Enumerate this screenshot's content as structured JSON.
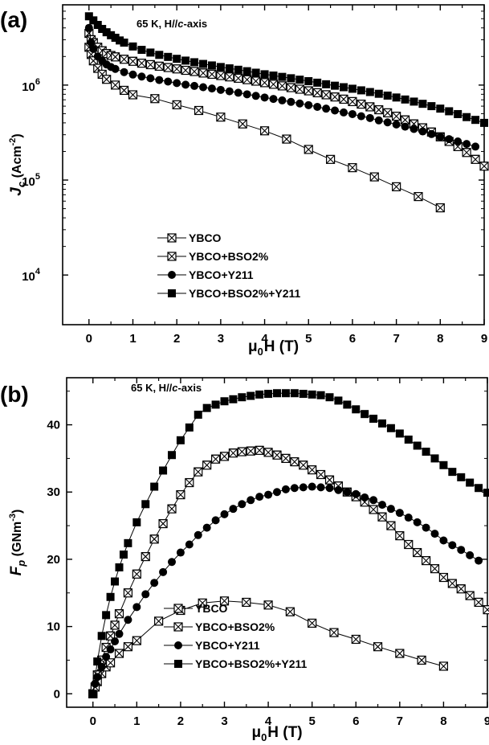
{
  "chart_data": [
    {
      "panel": "(a)",
      "type": "scatter",
      "annotation": "65 K, H//c-axis",
      "annotation_parts": {
        "pre": "65 K, H//",
        "italic": "c",
        "post": "-axis"
      },
      "ylabel_parts": {
        "var": "J",
        "sub": "c",
        "unit": "(Acm",
        "sup": "-2",
        "close": ")"
      },
      "xlabel_parts": {
        "mu": "μ",
        "sub": "0",
        "rest": "H (T)"
      },
      "xlim": [
        -0.6,
        9
      ],
      "ylim": [
        3000,
        7000000
      ],
      "yscale": "log",
      "x_ticks": [
        "0",
        "1",
        "2",
        "3",
        "4",
        "5",
        "6",
        "7",
        "8",
        "9"
      ],
      "y_ticks": [
        {
          "value": 10000,
          "base": "10",
          "exp": "4"
        },
        {
          "value": 100000,
          "base": "10",
          "exp": "5"
        },
        {
          "value": 1000000,
          "base": "10",
          "exp": "6"
        }
      ],
      "legend": [
        "YBCO",
        "YBCO+BSO2%",
        "YBCO+Y211",
        "YBCO+BSO2%+Y211"
      ],
      "series": [
        {
          "name": "YBCO",
          "marker": "crossbox",
          "x": [
            0.0,
            0.05,
            0.1,
            0.2,
            0.3,
            0.4,
            0.6,
            0.8,
            1.0,
            1.5,
            2.0,
            2.5,
            3.0,
            3.5,
            4.0,
            4.5,
            5.0,
            5.5,
            6.0,
            6.5,
            7.0,
            7.5,
            8.0
          ],
          "y": [
            2500000,
            2100000,
            1800000,
            1500000,
            1300000,
            1150000,
            1000000,
            880000,
            790000,
            720000,
            620000,
            540000,
            460000,
            390000,
            330000,
            270000,
            210000,
            165000,
            135000,
            108000,
            85000,
            67000,
            51000
          ]
        },
        {
          "name": "YBCO+BSO2%",
          "marker": "hourglassbox",
          "x": [
            0.0,
            0.05,
            0.1,
            0.2,
            0.3,
            0.4,
            0.5,
            0.6,
            0.8,
            1.0,
            1.2,
            1.4,
            1.6,
            1.8,
            2.0,
            2.2,
            2.4,
            2.6,
            2.8,
            3.0,
            3.2,
            3.4,
            3.6,
            3.8,
            4.0,
            4.2,
            4.4,
            4.6,
            4.8,
            5.0,
            5.2,
            5.4,
            5.6,
            5.8,
            6.0,
            6.2,
            6.4,
            6.6,
            6.8,
            7.0,
            7.2,
            7.4,
            7.6,
            7.8,
            8.0,
            8.2,
            8.4,
            8.6,
            8.8,
            9.0
          ],
          "y": [
            3500000,
            3000000,
            2800000,
            2500000,
            2300000,
            2150000,
            2050000,
            1980000,
            1870000,
            1780000,
            1700000,
            1640000,
            1580000,
            1530000,
            1480000,
            1430000,
            1390000,
            1340000,
            1300000,
            1260000,
            1220000,
            1180000,
            1140000,
            1100000,
            1060000,
            1020000,
            980000,
            940000,
            905000,
            870000,
            830000,
            790000,
            750000,
            710000,
            670000,
            630000,
            590000,
            550000,
            510000,
            470000,
            430000,
            390000,
            355000,
            320000,
            285000,
            255000,
            225000,
            195000,
            165000,
            140000
          ]
        },
        {
          "name": "YBCO+Y211",
          "marker": "circle",
          "x": [
            0.0,
            0.05,
            0.1,
            0.2,
            0.3,
            0.4,
            0.5,
            0.6,
            0.8,
            1.0,
            1.2,
            1.4,
            1.6,
            1.8,
            2.0,
            2.2,
            2.4,
            2.6,
            2.8,
            3.0,
            3.2,
            3.4,
            3.6,
            3.8,
            4.0,
            4.2,
            4.4,
            4.6,
            4.8,
            5.0,
            5.2,
            5.4,
            5.6,
            5.8,
            6.0,
            6.2,
            6.4,
            6.6,
            6.8,
            7.0,
            7.2,
            7.4,
            7.6,
            7.8,
            8.0,
            8.2,
            8.4,
            8.6,
            8.8
          ],
          "y": [
            4000000,
            2800000,
            2400000,
            2000000,
            1800000,
            1650000,
            1550000,
            1480000,
            1370000,
            1290000,
            1230000,
            1180000,
            1130000,
            1090000,
            1050000,
            1010000,
            980000,
            950000,
            920000,
            890000,
            860000,
            830000,
            800000,
            770000,
            740000,
            715000,
            690000,
            665000,
            640000,
            615000,
            590000,
            565000,
            540000,
            515000,
            495000,
            470000,
            450000,
            425000,
            405000,
            385000,
            365000,
            345000,
            325000,
            305000,
            285000,
            270000,
            255000,
            240000,
            225000
          ]
        },
        {
          "name": "YBCO+BSO2%+Y211",
          "marker": "square",
          "x": [
            0.0,
            0.1,
            0.2,
            0.3,
            0.4,
            0.5,
            0.6,
            0.7,
            0.8,
            1.0,
            1.2,
            1.4,
            1.6,
            1.8,
            2.0,
            2.2,
            2.4,
            2.6,
            2.8,
            3.0,
            3.2,
            3.4,
            3.6,
            3.8,
            4.0,
            4.2,
            4.4,
            4.6,
            4.8,
            5.0,
            5.2,
            5.4,
            5.6,
            5.8,
            6.0,
            6.2,
            6.4,
            6.6,
            6.8,
            7.0,
            7.2,
            7.4,
            7.6,
            7.8,
            8.0,
            8.2,
            8.4,
            8.6,
            8.8,
            9.0
          ],
          "y": [
            5300000,
            4800000,
            4300000,
            3900000,
            3600000,
            3350000,
            3150000,
            2950000,
            2800000,
            2550000,
            2350000,
            2200000,
            2080000,
            1980000,
            1890000,
            1810000,
            1740000,
            1670000,
            1610000,
            1550000,
            1500000,
            1450000,
            1400000,
            1350000,
            1300000,
            1260000,
            1220000,
            1180000,
            1140000,
            1100000,
            1060000,
            1020000,
            985000,
            950000,
            915000,
            880000,
            845000,
            810000,
            775000,
            740000,
            705000,
            670000,
            635000,
            600000,
            565000,
            530000,
            495000,
            460000,
            430000,
            400000
          ]
        }
      ]
    },
    {
      "panel": "(b)",
      "type": "scatter",
      "annotation": "65 K, H//c-axis",
      "annotation_parts": {
        "pre": "65 K, H//",
        "italic": "c",
        "post": "-axis"
      },
      "ylabel_parts": {
        "var": "F",
        "sub": "p",
        "unit": "(GNm",
        "sup": "-3",
        "close": ")"
      },
      "xlabel_parts": {
        "mu": "μ",
        "sub": "0",
        "rest": "H (T)"
      },
      "xlim": [
        -0.6,
        9
      ],
      "ylim": [
        -2,
        47
      ],
      "yscale": "linear",
      "x_ticks": [
        "0",
        "1",
        "2",
        "3",
        "4",
        "5",
        "6",
        "7",
        "8",
        "9"
      ],
      "y_ticks": [
        {
          "value": 0,
          "label": "0"
        },
        {
          "value": 10,
          "label": "10"
        },
        {
          "value": 20,
          "label": "20"
        },
        {
          "value": 30,
          "label": "30"
        },
        {
          "value": 40,
          "label": "40"
        }
      ],
      "legend": [
        "YBCO",
        "YBCO+BSO2%",
        "YBCO+Y211",
        "YBCO+BSO2%+Y211"
      ],
      "series": [
        {
          "name": "YBCO",
          "marker": "crossbox",
          "x": [
            0.0,
            0.05,
            0.1,
            0.2,
            0.3,
            0.4,
            0.6,
            0.8,
            1.0,
            1.5,
            2.0,
            2.5,
            3.0,
            3.5,
            4.0,
            4.5,
            5.0,
            5.5,
            6.0,
            6.5,
            7.0,
            7.5,
            8.0
          ],
          "y": [
            0.0,
            1.0,
            1.8,
            3.0,
            4.0,
            4.6,
            6.0,
            7.0,
            7.9,
            10.8,
            12.4,
            13.5,
            13.8,
            13.6,
            13.2,
            12.2,
            10.5,
            9.1,
            8.1,
            7.0,
            6.0,
            5.0,
            4.1
          ]
        },
        {
          "name": "YBCO+BSO2%",
          "marker": "hourglassbox",
          "x": [
            0.0,
            0.05,
            0.1,
            0.2,
            0.3,
            0.4,
            0.5,
            0.6,
            0.8,
            1.0,
            1.2,
            1.4,
            1.6,
            1.8,
            2.0,
            2.2,
            2.4,
            2.6,
            2.8,
            3.0,
            3.2,
            3.4,
            3.6,
            3.8,
            4.0,
            4.2,
            4.4,
            4.6,
            4.8,
            5.0,
            5.2,
            5.4,
            5.6,
            5.8,
            6.0,
            6.2,
            6.4,
            6.6,
            6.8,
            7.0,
            7.2,
            7.4,
            7.6,
            7.8,
            8.0,
            8.2,
            8.4,
            8.6,
            8.8,
            9.0
          ],
          "y": [
            0.0,
            1.0,
            2.8,
            5.0,
            6.9,
            8.6,
            10.2,
            11.9,
            15.0,
            17.8,
            20.4,
            23.0,
            25.3,
            27.5,
            29.6,
            31.4,
            33.0,
            34.0,
            34.9,
            35.3,
            35.8,
            36.0,
            36.1,
            36.2,
            35.9,
            35.5,
            35.0,
            34.5,
            34.0,
            33.3,
            32.6,
            31.8,
            30.9,
            30.0,
            29.3,
            28.5,
            27.4,
            26.3,
            25.0,
            23.5,
            22.2,
            21.0,
            19.8,
            18.6,
            17.3,
            16.4,
            15.6,
            14.6,
            13.6,
            12.5
          ]
        },
        {
          "name": "YBCO+Y211",
          "marker": "circle",
          "x": [
            0.0,
            0.05,
            0.1,
            0.2,
            0.3,
            0.4,
            0.5,
            0.6,
            0.8,
            1.0,
            1.2,
            1.4,
            1.6,
            1.8,
            2.0,
            2.2,
            2.4,
            2.6,
            2.8,
            3.0,
            3.2,
            3.4,
            3.6,
            3.8,
            4.0,
            4.2,
            4.4,
            4.6,
            4.8,
            5.0,
            5.2,
            5.4,
            5.6,
            5.8,
            6.0,
            6.2,
            6.4,
            6.6,
            6.8,
            7.0,
            7.2,
            7.4,
            7.6,
            7.8,
            8.0,
            8.2,
            8.4,
            8.6,
            8.8
          ],
          "y": [
            0.0,
            1.5,
            2.5,
            4.0,
            5.5,
            6.6,
            7.8,
            8.9,
            11.0,
            12.9,
            14.8,
            16.5,
            18.1,
            19.6,
            21.0,
            22.2,
            23.6,
            24.7,
            25.8,
            26.7,
            27.5,
            28.2,
            28.8,
            29.3,
            29.6,
            30.0,
            30.4,
            30.6,
            30.7,
            30.8,
            30.7,
            30.6,
            30.3,
            30.0,
            29.7,
            29.2,
            28.8,
            28.1,
            27.5,
            26.9,
            26.2,
            25.5,
            24.7,
            23.8,
            22.8,
            22.1,
            21.4,
            20.6,
            19.8
          ]
        },
        {
          "name": "YBCO+BSO2%+Y211",
          "marker": "square",
          "x": [
            0.0,
            0.1,
            0.2,
            0.3,
            0.4,
            0.5,
            0.6,
            0.7,
            0.8,
            1.0,
            1.2,
            1.4,
            1.6,
            1.8,
            2.0,
            2.2,
            2.4,
            2.6,
            2.8,
            3.0,
            3.2,
            3.4,
            3.6,
            3.8,
            4.0,
            4.2,
            4.4,
            4.6,
            4.8,
            5.0,
            5.2,
            5.4,
            5.6,
            5.8,
            6.0,
            6.2,
            6.4,
            6.6,
            6.8,
            7.0,
            7.2,
            7.4,
            7.6,
            7.8,
            8.0,
            8.2,
            8.4,
            8.6,
            8.8,
            9.0
          ],
          "y": [
            0.0,
            4.8,
            8.6,
            11.7,
            14.4,
            16.7,
            18.8,
            20.7,
            22.4,
            25.5,
            28.2,
            30.8,
            33.2,
            35.5,
            37.7,
            39.6,
            41.5,
            42.5,
            43.0,
            43.5,
            43.8,
            44.1,
            44.3,
            44.5,
            44.6,
            44.7,
            44.7,
            44.7,
            44.6,
            44.5,
            44.4,
            44.1,
            43.6,
            43.0,
            42.3,
            41.6,
            40.9,
            40.2,
            39.5,
            38.7,
            37.8,
            36.9,
            36.0,
            35.0,
            34.0,
            33.0,
            32.2,
            31.4,
            30.6,
            29.9
          ]
        }
      ]
    }
  ]
}
